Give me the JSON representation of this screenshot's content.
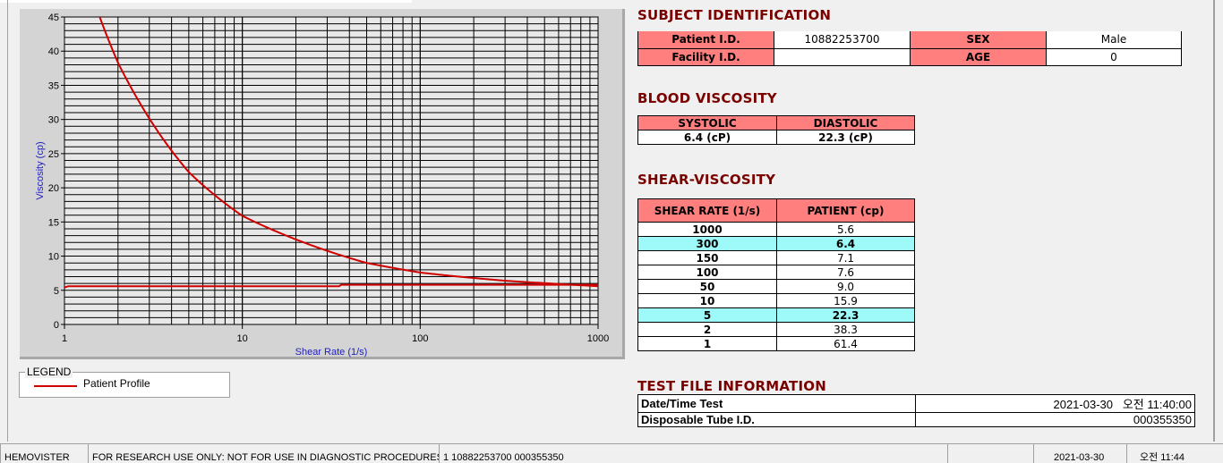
{
  "chart_data": {
    "type": "line",
    "xlabel": "Shear Rate (1/s)",
    "ylabel": "Viscosity (cp)",
    "xscale": "log",
    "xlim": [
      1,
      1000
    ],
    "ylim": [
      0,
      45
    ],
    "xticks": [
      "1",
      "10",
      "100",
      "1000"
    ],
    "yticks": [
      "0",
      "5",
      "10",
      "15",
      "20",
      "25",
      "30",
      "35",
      "40",
      "45"
    ],
    "grid": true,
    "series": [
      {
        "name": "Patient Profile",
        "color": "#d00000",
        "x": [
          1,
          2,
          5,
          10,
          50,
          100,
          150,
          300,
          1000
        ],
        "y": [
          61.4,
          38.3,
          22.3,
          15.9,
          9.0,
          7.6,
          7.1,
          6.4,
          5.6
        ]
      },
      {
        "color": "#d00000",
        "x": [
          1,
          1.05,
          35,
          36,
          1000
        ],
        "y": [
          5.4,
          5.6,
          5.6,
          5.8,
          5.8
        ]
      }
    ],
    "legend": {
      "title": "LEGEND",
      "placement": "bottom-left"
    }
  },
  "subject": {
    "title": "SUBJECT IDENTIFICATION",
    "patient_id_label": "Patient I.D.",
    "patient_id": "10882253700",
    "sex_label": "SEX",
    "sex": "Male",
    "facility_label": "Facility I.D.",
    "facility": "",
    "age_label": "AGE",
    "age": "0"
  },
  "blood": {
    "title": "BLOOD VISCOSITY",
    "systolic_label": "SYSTOLIC",
    "diastolic_label": "DIASTOLIC",
    "systolic": "6.4 (cP)",
    "diastolic": "22.3 (cP)"
  },
  "shear": {
    "title": "SHEAR-VISCOSITY",
    "col1": "SHEAR RATE (1/s)",
    "col2": "PATIENT (cp)",
    "highlight_color": "#9ef9f9",
    "rows": [
      {
        "rate": "1000",
        "val": "5.6",
        "hl": false
      },
      {
        "rate": "300",
        "val": "6.4",
        "hl": true
      },
      {
        "rate": "150",
        "val": "7.1",
        "hl": false
      },
      {
        "rate": "100",
        "val": "7.6",
        "hl": false
      },
      {
        "rate": "50",
        "val": "9.0",
        "hl": false
      },
      {
        "rate": "10",
        "val": "15.9",
        "hl": false
      },
      {
        "rate": "5",
        "val": "22.3",
        "hl": true
      },
      {
        "rate": "2",
        "val": "38.3",
        "hl": false
      },
      {
        "rate": "1",
        "val": "61.4",
        "hl": false
      }
    ]
  },
  "testfile": {
    "title": "TEST FILE INFORMATION",
    "datetime_label": "Date/Time Test",
    "datetime": "2021-03-30   오전 11:40:00",
    "tube_label": "Disposable Tube I.D.",
    "tube": "000355350"
  },
  "status": {
    "app": "HEMOVISTER",
    "notice": "FOR RESEARCH USE ONLY: NOT FOR USE IN DIAGNOSTIC PROCEDURES",
    "record": "1  10882253700  000355350",
    "empty": "",
    "date": "2021-03-30",
    "time": "오전 11:44"
  }
}
